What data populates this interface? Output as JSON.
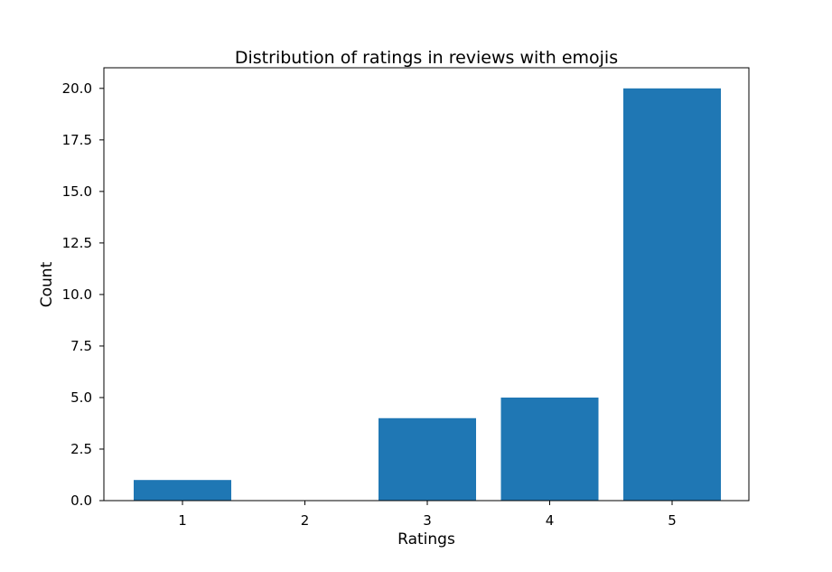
{
  "chart_data": {
    "type": "bar",
    "title": "Distribution of ratings in reviews with emojis",
    "xlabel": "Ratings",
    "ylabel": "Count",
    "categories": [
      "1",
      "2",
      "3",
      "4",
      "5"
    ],
    "values": [
      1,
      0,
      4,
      5,
      20
    ],
    "ylim": [
      0,
      21
    ],
    "yticks": [
      0,
      2.5,
      5,
      7.5,
      10,
      12.5,
      15,
      17.5,
      20
    ],
    "ytick_labels": [
      "0.0",
      "2.5",
      "5.0",
      "7.5",
      "10.0",
      "12.5",
      "15.0",
      "17.5",
      "20.0"
    ],
    "bar_color": "#1f77b4",
    "grid": false,
    "legend": "none"
  }
}
